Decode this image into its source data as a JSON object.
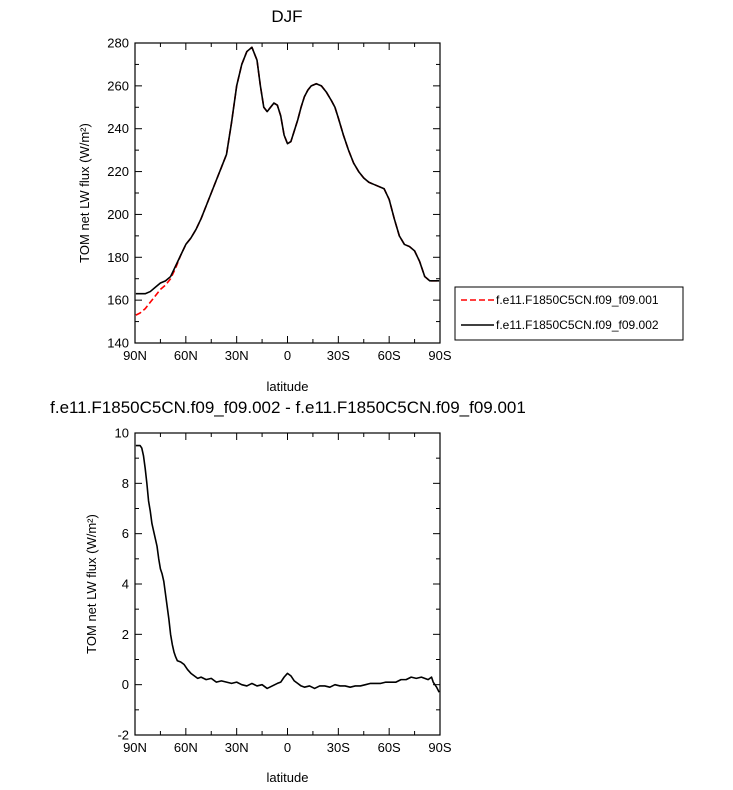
{
  "chart_data": [
    {
      "type": "line",
      "title": "DJF",
      "xlabel": "latitude",
      "ylabel": "TOM net LW flux (W/m²)",
      "xlim": [
        90,
        -90
      ],
      "ylim": [
        140,
        280
      ],
      "x_ticks": [
        90,
        60,
        30,
        0,
        -30,
        -60,
        -90
      ],
      "x_tick_labels": [
        "90N",
        "60N",
        "30N",
        "0",
        "30S",
        "60S",
        "90S"
      ],
      "y_ticks": [
        140,
        160,
        180,
        200,
        220,
        240,
        260,
        280
      ],
      "y_tick_labels": [
        "140",
        "160",
        "180",
        "200",
        "220",
        "240",
        "260",
        "280"
      ],
      "legend_position": "right",
      "series": [
        {
          "name": "f.e11.F1850C5CN.f09_f09.001",
          "color": "#ff0000",
          "dash": "dashed",
          "x": [
            89.5,
            87,
            84,
            81,
            78,
            75,
            72,
            69,
            66,
            63,
            60,
            57,
            54,
            51,
            48,
            45,
            42,
            39,
            36,
            33,
            30,
            27,
            24,
            21,
            18,
            16,
            14,
            12,
            10,
            8,
            6,
            4,
            2,
            0,
            -2,
            -4,
            -6,
            -8,
            -10,
            -12,
            -14,
            -17,
            -20,
            -23,
            -26,
            -28,
            -30,
            -33,
            -36,
            -39,
            -42,
            -45,
            -48,
            -51,
            -54,
            -57,
            -60,
            -63,
            -66,
            -69,
            -72,
            -75,
            -78,
            -81,
            -84,
            -87,
            -89.5
          ],
          "y": [
            153,
            154,
            156,
            159,
            162,
            165,
            167,
            170,
            175,
            181,
            186,
            189,
            193,
            198,
            204,
            210,
            216,
            222,
            228,
            243,
            260,
            270,
            276,
            278,
            272,
            260,
            250,
            248,
            250,
            252,
            251,
            246,
            237,
            233,
            234,
            239,
            244,
            250,
            255,
            258,
            260,
            261,
            260,
            257,
            253,
            250,
            245,
            237,
            230,
            224,
            220,
            217,
            215,
            214,
            213,
            212,
            207,
            198,
            190,
            186,
            185,
            183,
            178,
            171,
            169,
            169,
            169
          ]
        },
        {
          "name": "f.e11.F1850C5CN.f09_f09.002",
          "color": "#000000",
          "dash": "solid",
          "x": [
            89.5,
            87,
            84,
            81,
            78,
            75,
            72,
            69,
            66,
            63,
            60,
            57,
            54,
            51,
            48,
            45,
            42,
            39,
            36,
            33,
            30,
            27,
            24,
            21,
            18,
            16,
            14,
            12,
            10,
            8,
            6,
            4,
            2,
            0,
            -2,
            -4,
            -6,
            -8,
            -10,
            -12,
            -14,
            -17,
            -20,
            -23,
            -26,
            -28,
            -30,
            -33,
            -36,
            -39,
            -42,
            -45,
            -48,
            -51,
            -54,
            -57,
            -60,
            -63,
            -66,
            -69,
            -72,
            -75,
            -78,
            -81,
            -84,
            -87,
            -89.5
          ],
          "y": [
            163,
            163,
            163,
            164,
            166,
            168,
            169,
            171,
            176,
            181,
            186,
            189,
            193,
            198,
            204,
            210,
            216,
            222,
            228,
            243,
            260,
            270,
            276,
            278,
            272,
            260,
            250,
            248,
            250,
            252,
            251,
            246,
            237,
            233,
            234,
            239,
            244,
            250,
            255,
            258,
            260,
            261,
            260,
            257,
            253,
            250,
            245,
            237,
            230,
            224,
            220,
            217,
            215,
            214,
            213,
            212,
            207,
            198,
            190,
            186,
            185,
            183,
            178,
            171,
            169,
            169,
            169
          ]
        }
      ]
    },
    {
      "type": "line",
      "title": "f.e11.F1850C5CN.f09_f09.002 - f.e11.F1850C5CN.f09_f09.001",
      "xlabel": "latitude",
      "ylabel": "TOM net LW flux (W/m²)",
      "xlim": [
        90,
        -90
      ],
      "ylim": [
        -2,
        10
      ],
      "x_ticks": [
        90,
        60,
        30,
        0,
        -30,
        -60,
        -90
      ],
      "x_tick_labels": [
        "90N",
        "60N",
        "30N",
        "0",
        "30S",
        "60S",
        "90S"
      ],
      "y_ticks": [
        -2,
        0,
        2,
        4,
        6,
        8,
        10
      ],
      "y_tick_labels": [
        "-2",
        "0",
        "2",
        "4",
        "6",
        "8",
        "10"
      ],
      "series": [
        {
          "color": "#000000",
          "dash": "solid",
          "x": [
            89.5,
            88,
            87,
            86,
            85,
            84,
            83,
            82,
            81,
            80,
            79,
            78,
            77,
            76,
            75,
            74,
            73,
            72,
            71,
            70,
            69,
            68,
            67,
            66,
            65,
            63,
            61,
            59,
            57,
            55,
            53,
            51,
            48,
            45,
            42,
            39,
            36,
            33,
            30,
            27,
            24,
            21,
            18,
            15,
            12,
            9,
            6,
            4,
            2,
            0,
            -2,
            -4,
            -6,
            -8,
            -10,
            -13,
            -16,
            -19,
            -22,
            -25,
            -28,
            -31,
            -34,
            -37,
            -40,
            -43,
            -46,
            -49,
            -52,
            -55,
            -58,
            -61,
            -64,
            -67,
            -70,
            -73,
            -76,
            -79,
            -81,
            -83,
            -85,
            -86,
            -87,
            -88,
            -89.5
          ],
          "y": [
            9.5,
            9.5,
            9.5,
            9.4,
            9.1,
            8.6,
            8.0,
            7.3,
            6.9,
            6.4,
            6.1,
            5.8,
            5.5,
            5.0,
            4.6,
            4.4,
            4.1,
            3.6,
            3.1,
            2.6,
            2.0,
            1.6,
            1.3,
            1.1,
            0.95,
            0.9,
            0.8,
            0.6,
            0.45,
            0.35,
            0.25,
            0.3,
            0.2,
            0.25,
            0.1,
            0.15,
            0.1,
            0.05,
            0.1,
            0.0,
            -0.05,
            0.05,
            -0.05,
            0.0,
            -0.15,
            -0.05,
            0.05,
            0.1,
            0.3,
            0.45,
            0.35,
            0.15,
            0.05,
            -0.05,
            -0.1,
            -0.05,
            -0.15,
            -0.05,
            -0.05,
            -0.1,
            0.0,
            -0.05,
            -0.05,
            -0.1,
            -0.05,
            -0.05,
            0.0,
            0.05,
            0.05,
            0.05,
            0.1,
            0.1,
            0.1,
            0.2,
            0.2,
            0.3,
            0.25,
            0.3,
            0.25,
            0.2,
            0.3,
            0.1,
            0.0,
            -0.1,
            -0.3
          ]
        }
      ]
    }
  ]
}
